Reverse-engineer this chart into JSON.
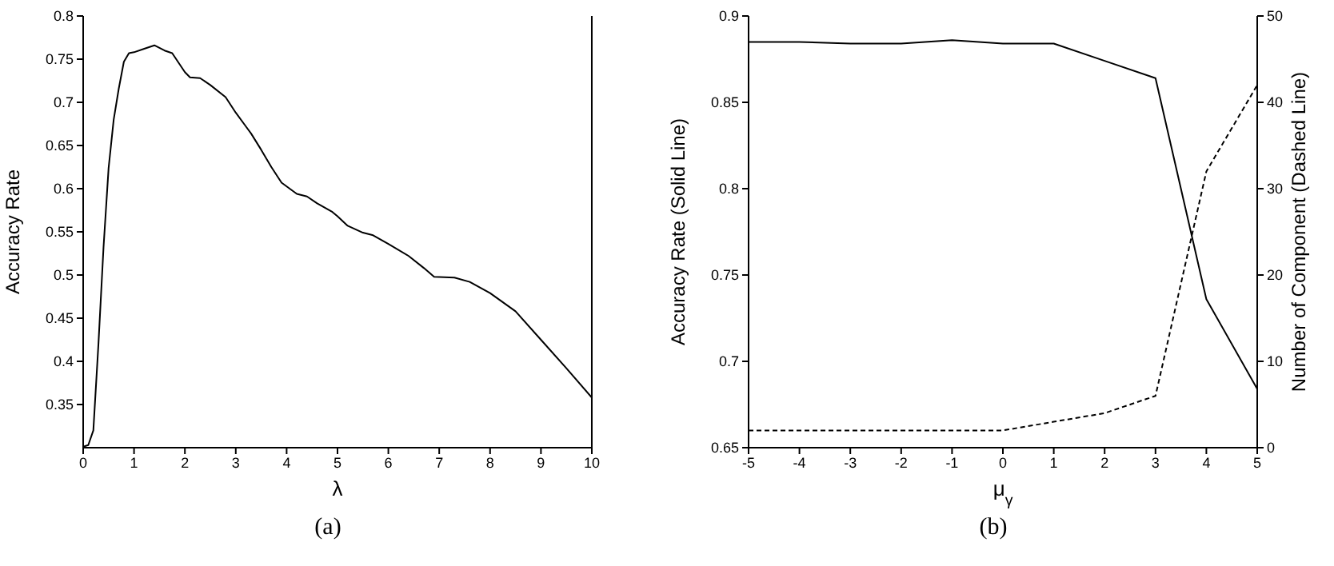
{
  "chart_data": [
    {
      "type": "line",
      "xlabel": "λ",
      "ylabel": "Accuracy Rate",
      "annotations": [
        "(a)"
      ],
      "x": [
        0,
        0.1,
        0.2,
        0.3,
        0.4,
        0.5,
        0.6,
        0.7,
        0.8,
        0.9,
        1.0,
        1.2,
        1.4,
        1.6,
        1.75,
        2.0,
        2.1,
        2.3,
        2.5,
        2.8,
        3.0,
        3.2,
        3.3,
        3.5,
        3.7,
        3.9,
        4.2,
        4.4,
        4.6,
        4.9,
        5.0,
        5.2,
        5.5,
        5.7,
        6.0,
        6.4,
        6.7,
        6.9,
        7.3,
        7.6,
        8.0,
        8.5,
        9.0,
        9.5,
        10
      ],
      "series": [
        {
          "color": "#000000",
          "line_style": "solid",
          "values": [
            0.301,
            0.303,
            0.32,
            0.42,
            0.532,
            0.624,
            0.68,
            0.716,
            0.747,
            0.757,
            0.758,
            0.762,
            0.766,
            0.76,
            0.757,
            0.735,
            0.729,
            0.728,
            0.72,
            0.706,
            0.688,
            0.672,
            0.664,
            0.645,
            0.625,
            0.607,
            0.594,
            0.591,
            0.583,
            0.573,
            0.568,
            0.557,
            0.549,
            0.546,
            0.536,
            0.522,
            0.508,
            0.498,
            0.497,
            0.492,
            0.479,
            0.458,
            0.425,
            0.392,
            0.358
          ]
        }
      ],
      "xlim": [
        0,
        10
      ],
      "xticks": [
        0,
        1,
        2,
        3,
        4,
        5,
        6,
        7,
        8,
        9,
        10
      ],
      "ylim": [
        0.3,
        0.8
      ],
      "yticks": [
        0.35,
        0.4,
        0.45,
        0.5,
        0.55,
        0.6,
        0.65,
        0.7,
        0.75,
        0.8
      ],
      "grid": false,
      "legend": false,
      "marker": "none"
    },
    {
      "type": "line",
      "xlabel": "μ$_{γ}$",
      "ylabel": "Accuracy Rate (Solid Line)",
      "y2label": "Number of Component (Dashed Line)",
      "annotations": [
        "(b)"
      ],
      "x": [
        -5,
        -4,
        -3,
        -2,
        -1,
        0,
        1,
        2,
        3,
        4,
        5
      ],
      "series": [
        {
          "color": "#000000",
          "line_style": "solid",
          "values": [
            0.885,
            0.885,
            0.884,
            0.884,
            0.886,
            0.884,
            0.884,
            0.874,
            0.864,
            0.736,
            0.684
          ]
        },
        {
          "color": "#000000",
          "line_style": "dashed",
          "axis": "y2",
          "values": [
            2,
            2,
            2,
            2,
            2,
            2,
            3,
            4,
            6,
            32,
            42
          ]
        }
      ],
      "xlim": [
        -5,
        5
      ],
      "xticks": [
        -5,
        -4,
        -3,
        -2,
        -1,
        0,
        1,
        2,
        3,
        4,
        5
      ],
      "ylim": [
        0.65,
        0.9
      ],
      "yticks": [
        0.65,
        0.7,
        0.75,
        0.8,
        0.85,
        0.9
      ],
      "y2lim": [
        0,
        50
      ],
      "y2ticks": [
        0,
        10,
        20,
        30,
        40,
        50
      ],
      "grid": false,
      "legend": false,
      "marker": "none"
    }
  ]
}
